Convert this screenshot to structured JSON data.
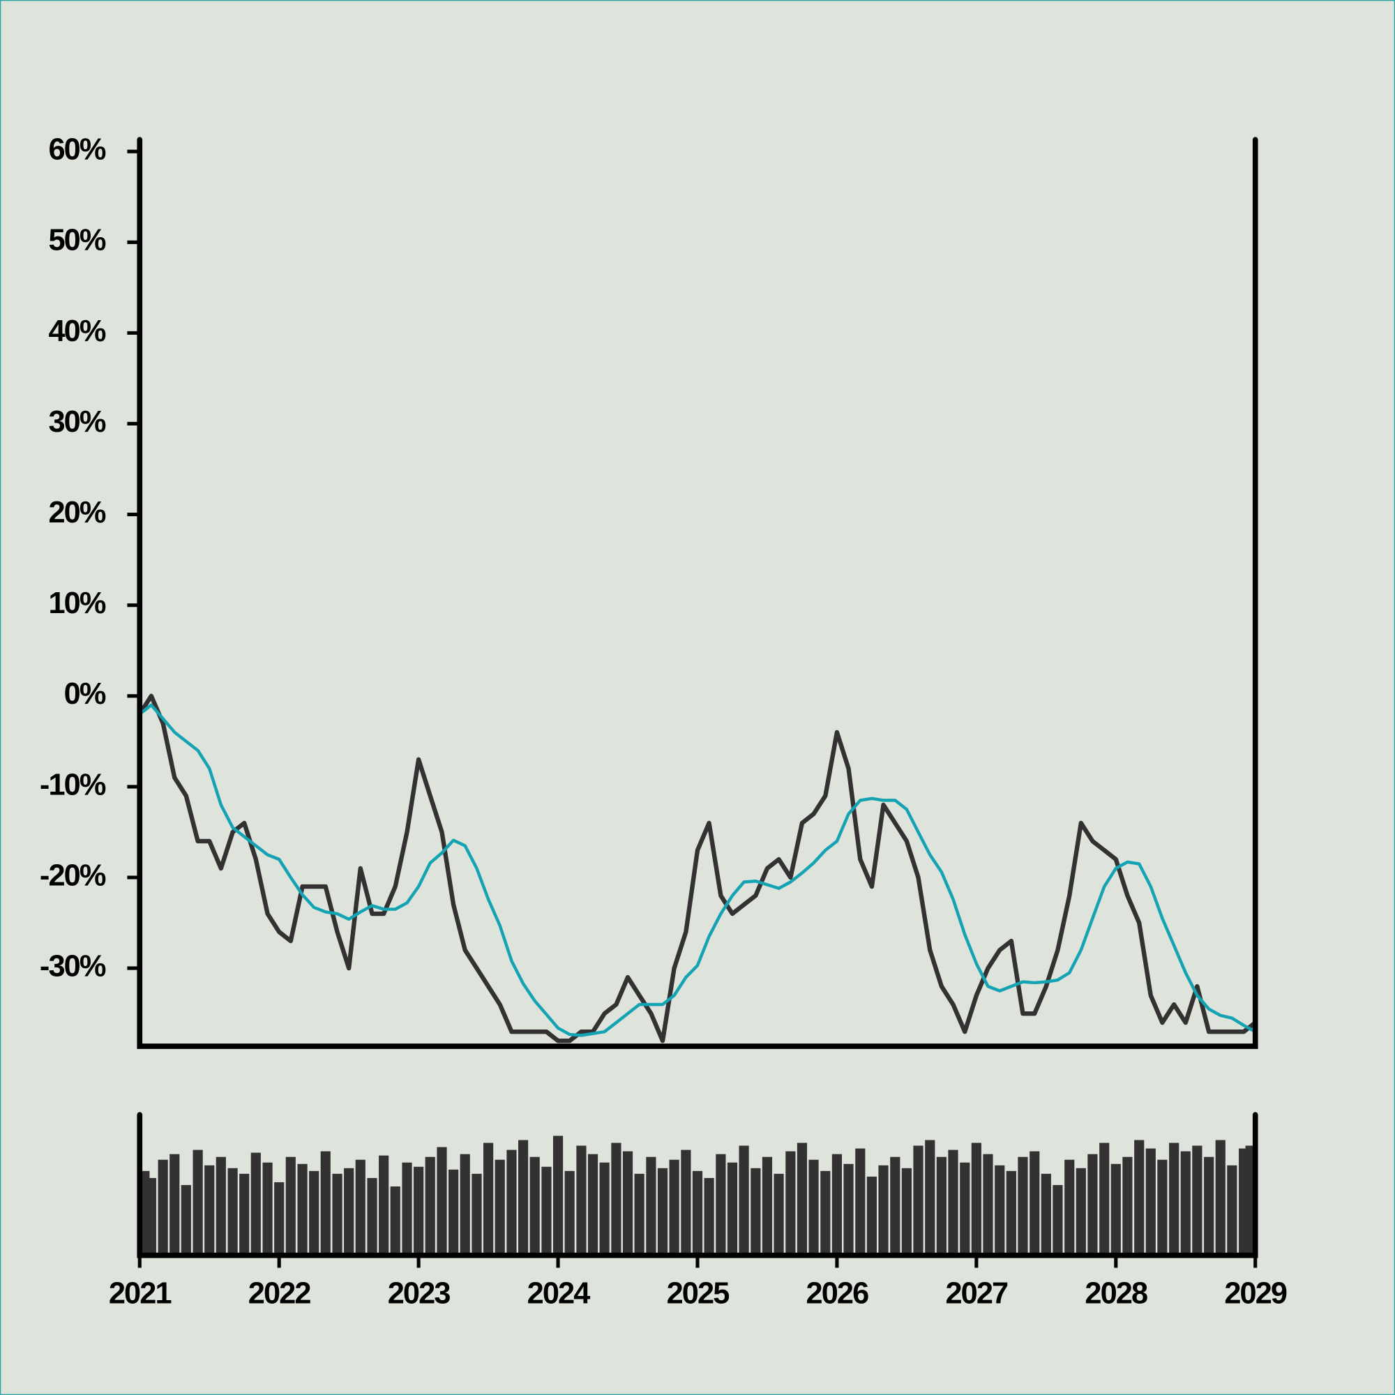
{
  "chart_data": [
    {
      "type": "line",
      "x": [
        2021,
        2021.083,
        2021.167,
        2021.25,
        2021.333,
        2021.417,
        2021.5,
        2021.583,
        2021.667,
        2021.75,
        2021.833,
        2021.917,
        2022,
        2022.083,
        2022.167,
        2022.25,
        2022.333,
        2022.417,
        2022.5,
        2022.583,
        2022.667,
        2022.75,
        2022.833,
        2022.917,
        2023,
        2023.083,
        2023.167,
        2023.25,
        2023.333,
        2023.417,
        2023.5,
        2023.583,
        2023.667,
        2023.75,
        2023.833,
        2023.917,
        2024,
        2024.083,
        2024.167,
        2024.25,
        2024.333,
        2024.417,
        2024.5,
        2024.583,
        2024.667,
        2024.75,
        2024.833,
        2024.917,
        2025,
        2025.083,
        2025.167,
        2025.25,
        2025.333,
        2025.417,
        2025.5,
        2025.583,
        2025.667,
        2025.75,
        2025.833,
        2025.917,
        2026,
        2026.083,
        2026.167,
        2026.25,
        2026.333,
        2026.417,
        2026.5,
        2026.583,
        2026.667,
        2026.75,
        2026.833,
        2026.917,
        2027,
        2027.083,
        2027.167,
        2027.25,
        2027.333,
        2027.417,
        2027.5,
        2027.583,
        2027.667,
        2027.75,
        2027.833,
        2027.917,
        2028,
        2028.083,
        2028.167,
        2028.25,
        2028.333,
        2028.417,
        2028.5,
        2028.583,
        2028.667,
        2028.75,
        2028.833,
        2028.917,
        2029
      ],
      "xlim": [
        2021,
        2029
      ],
      "ylim": [
        -38.6,
        61.3
      ],
      "yticks": [
        {
          "value": -30,
          "label": "-30%"
        },
        {
          "value": -20,
          "label": "-20%"
        },
        {
          "value": -10,
          "label": "-10%"
        },
        {
          "value": 0,
          "label": "0%"
        },
        {
          "value": 10,
          "label": "10%"
        },
        {
          "value": 20,
          "label": "20%"
        },
        {
          "value": 30,
          "label": "30%"
        },
        {
          "value": 40,
          "label": "40%"
        },
        {
          "value": 50,
          "label": "50%"
        },
        {
          "value": 60,
          "label": "60%"
        }
      ],
      "series": [
        {
          "color": "#333132",
          "values": [
            -2,
            0,
            -3,
            -9,
            -11,
            -16,
            -16,
            -19,
            -15,
            -14,
            -18,
            -24,
            -26,
            -27,
            -21,
            -21,
            -21,
            -26,
            -30,
            -19,
            -24,
            -24,
            -21,
            -15,
            -7,
            -11,
            -15,
            -23,
            -28,
            -30,
            -32,
            -34,
            -37,
            -37,
            -37,
            -37,
            -38,
            -38,
            -37,
            -37,
            -35,
            -34,
            -31,
            -33,
            -35,
            -38,
            -30,
            -26,
            -17,
            -14,
            -22,
            -24,
            -23,
            -22,
            -19,
            -18,
            -20,
            -14,
            -13,
            -11,
            -4,
            -8,
            -18,
            -21,
            -12,
            -14,
            -16,
            -20,
            -28,
            -32,
            -34,
            -37,
            -33,
            -30,
            -28,
            -27,
            -35,
            -35,
            -32,
            -28,
            -22,
            -14,
            -16,
            -17,
            -18,
            -22,
            -25,
            -33,
            -36,
            -34,
            -36,
            -32,
            -37,
            -37,
            -37,
            -37,
            -36
          ]
        },
        {
          "color": "#14a3b2",
          "values": [
            -2,
            -1,
            -2.5,
            -4,
            -5,
            -6,
            -8,
            -12,
            -14.5,
            -15.5,
            -16.5,
            -17.5,
            -18,
            -20,
            -21.9,
            -23.3,
            -23.8,
            -24,
            -24.6,
            -23.8,
            -23.1,
            -23.5,
            -23.5,
            -22.8,
            -21,
            -18.4,
            -17.3,
            -15.9,
            -16.5,
            -19,
            -22.4,
            -25.3,
            -29.2,
            -31.7,
            -33.6,
            -35.1,
            -36.6,
            -37.3,
            -37.4,
            -37.2,
            -37,
            -36,
            -35,
            -34,
            -34,
            -34,
            -33,
            -31,
            -29.7,
            -26.5,
            -24,
            -22,
            -20.5,
            -20.4,
            -20.8,
            -21.2,
            -20.5,
            -19.5,
            -18.4,
            -17,
            -16,
            -13,
            -11.5,
            -11.3,
            -11.5,
            -11.5,
            -12.5,
            -15,
            -17.5,
            -19.4,
            -22.4,
            -26.3,
            -29.5,
            -32,
            -32.5,
            -32,
            -31.5,
            -31.6,
            -31.5,
            -31.3,
            -30.5,
            -28,
            -24.5,
            -21,
            -19,
            -18.3,
            -18.5,
            -21,
            -24.5,
            -27.5,
            -30.5,
            -33,
            -34.5,
            -35.2,
            -35.5,
            -36.3,
            -37
          ]
        }
      ]
    },
    {
      "type": "bar",
      "x": [
        2021,
        2021.083,
        2021.167,
        2021.25,
        2021.333,
        2021.417,
        2021.5,
        2021.583,
        2021.667,
        2021.75,
        2021.833,
        2021.917,
        2022,
        2022.083,
        2022.167,
        2022.25,
        2022.333,
        2022.417,
        2022.5,
        2022.583,
        2022.667,
        2022.75,
        2022.833,
        2022.917,
        2023,
        2023.083,
        2023.167,
        2023.25,
        2023.333,
        2023.417,
        2023.5,
        2023.583,
        2023.667,
        2023.75,
        2023.833,
        2023.917,
        2024,
        2024.083,
        2024.167,
        2024.25,
        2024.333,
        2024.417,
        2024.5,
        2024.583,
        2024.667,
        2024.75,
        2024.833,
        2024.917,
        2025,
        2025.083,
        2025.167,
        2025.25,
        2025.333,
        2025.417,
        2025.5,
        2025.583,
        2025.667,
        2025.75,
        2025.833,
        2025.917,
        2026,
        2026.083,
        2026.167,
        2026.25,
        2026.333,
        2026.417,
        2026.5,
        2026.583,
        2026.667,
        2026.75,
        2026.833,
        2026.917,
        2027,
        2027.083,
        2027.167,
        2027.25,
        2027.333,
        2027.417,
        2027.5,
        2027.583,
        2027.667,
        2027.75,
        2027.833,
        2027.917,
        2028,
        2028.083,
        2028.167,
        2028.25,
        2028.333,
        2028.417,
        2028.5,
        2028.583,
        2028.667,
        2028.75,
        2028.833,
        2028.917,
        2029
      ],
      "values": [
        60,
        55,
        68,
        72,
        50,
        75,
        64,
        70,
        62,
        58,
        73,
        66,
        52,
        70,
        65,
        60,
        74,
        58,
        62,
        68,
        55,
        71,
        49,
        66,
        63,
        70,
        77,
        61,
        72,
        58,
        80,
        68,
        75,
        82,
        70,
        63,
        85,
        60,
        78,
        72,
        66,
        80,
        74,
        58,
        70,
        62,
        68,
        75,
        60,
        55,
        72,
        66,
        78,
        62,
        70,
        58,
        74,
        80,
        68,
        60,
        72,
        65,
        76,
        56,
        64,
        70,
        62,
        78,
        82,
        70,
        75,
        66,
        80,
        72,
        64,
        60,
        70,
        74,
        58,
        50,
        68,
        62,
        72,
        80,
        65,
        70,
        82,
        76,
        68,
        80,
        74,
        78,
        70,
        82,
        64,
        76,
        78
      ],
      "color": "#333132",
      "xlim": [
        2021,
        2029
      ],
      "ylim": [
        0,
        100
      ],
      "xticks": [
        2021,
        2022,
        2023,
        2024,
        2025,
        2026,
        2027,
        2028,
        2029
      ]
    }
  ]
}
